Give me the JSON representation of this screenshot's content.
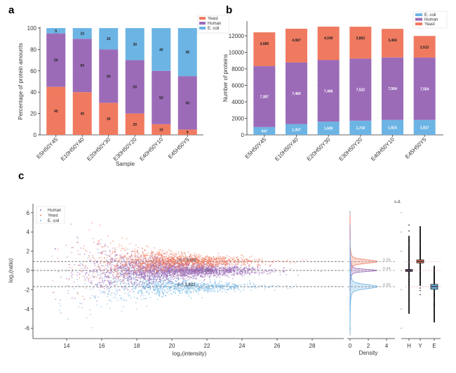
{
  "colors": {
    "yeast": "#f07a60",
    "human": "#9b6bb8",
    "ecoli": "#6cb4e4",
    "axis": "#333333"
  },
  "panels": {
    "a": {
      "letter": "a"
    },
    "b": {
      "letter": "b"
    },
    "c": {
      "letter": "c"
    }
  },
  "chart_data": [
    {
      "id": "a",
      "type": "bar",
      "stacked": true,
      "title": "",
      "xlabel": "Sample",
      "ylabel": "Percentage of protein amounts",
      "ylim": [
        0,
        100
      ],
      "yticks": [
        "0",
        "20",
        "40",
        "60",
        "80",
        "100"
      ],
      "categories": [
        "E5H50Y45",
        "E10H50Y40",
        "E20H50Y30",
        "E30H50Y20",
        "E40H50Y10",
        "E45H50Y5"
      ],
      "series": [
        {
          "name": "Yeast",
          "color_key": "yeast",
          "values": [
            45,
            40,
            30,
            20,
            10,
            5
          ],
          "labels": [
            "45",
            "40",
            "30",
            "20",
            "10",
            "5"
          ]
        },
        {
          "name": "Human",
          "color_key": "human",
          "values": [
            50,
            50,
            50,
            50,
            50,
            50
          ],
          "labels": [
            "50",
            "50",
            "50",
            "50",
            "50",
            "50"
          ]
        },
        {
          "name": "E. coli",
          "color_key": "ecoli",
          "values": [
            5,
            10,
            20,
            30,
            40,
            45
          ],
          "labels": [
            "5",
            "10",
            "20",
            "30",
            "40",
            "45"
          ]
        }
      ],
      "legend": {
        "position": "top-right",
        "entries": [
          "Yeast",
          "Human",
          "E. coli"
        ]
      }
    },
    {
      "id": "b",
      "type": "bar",
      "stacked": true,
      "title": "",
      "xlabel": "",
      "ylabel": "Number of proteins",
      "ylim": [
        0,
        13500
      ],
      "yticks": [
        "0",
        "2000",
        "4000",
        "6000",
        "8000",
        "10000",
        "12000"
      ],
      "grid": true,
      "categories": [
        "E5H50Y45",
        "E10H50Y40",
        "E20H50Y30",
        "E30H50Y20",
        "E40H50Y10",
        "E45H50Y5"
      ],
      "series": [
        {
          "name": "E. coli",
          "color_key": "ecoli",
          "values": [
            947,
            1307,
            1600,
            1719,
            1815,
            1817
          ],
          "labels": [
            "947",
            "1,307",
            "1,600",
            "1,719",
            "1,815",
            "1,817"
          ]
        },
        {
          "name": "Human",
          "color_key": "human",
          "values": [
            7387,
            7466,
            7466,
            7522,
            7564,
            7554
          ],
          "labels": [
            "7,387",
            "7,466",
            "7,466",
            "7,522",
            "7,564",
            "7,554"
          ]
        },
        {
          "name": "Yeast",
          "color_key": "yeast",
          "values": [
            4089,
            4087,
            4049,
            3863,
            3466,
            2612
          ],
          "labels": [
            "4,089",
            "4,087",
            "4,049",
            "3,863",
            "3,466",
            "2,612"
          ]
        }
      ],
      "legend": {
        "position": "top-right",
        "entries": [
          "E. coli",
          "Human",
          "Yeast"
        ]
      }
    },
    {
      "id": "c-scatter",
      "type": "scatter",
      "title": "",
      "xlabel": "log₂(intensity)",
      "ylabel": "log₂(ratio)",
      "xlim": [
        12.2,
        29.5
      ],
      "ylim": [
        -7,
        7
      ],
      "xticks": [
        "14",
        "16",
        "18",
        "20",
        "22",
        "24",
        "26",
        "28"
      ],
      "yticks": [
        "-6",
        "-4",
        "-2",
        "0",
        "2",
        "4",
        "6"
      ],
      "series": [
        {
          "name": "Human",
          "color_key": "human",
          "center": 0.0,
          "n_label": "n = 7,366"
        },
        {
          "name": "Yeast",
          "color_key": "yeast",
          "center": 0.93,
          "n_label": "n = 3,660"
        },
        {
          "name": "E. coli",
          "color_key": "ecoli",
          "center": -1.68,
          "n_label": "n = 1,822"
        }
      ],
      "reference_lines": [
        0.93,
        0.0,
        -1.68
      ],
      "legend": {
        "position": "top-left",
        "entries": [
          "Human",
          "Yeast",
          "E. coli"
        ]
      }
    },
    {
      "id": "c-density",
      "type": "area",
      "xlabel": "Density",
      "xlim": [
        0,
        5
      ],
      "xticks": [
        "0",
        "2",
        "4"
      ],
      "series": [
        {
          "name": "Yeast",
          "color_key": "yeast",
          "peak": 0.93,
          "sd_label": "0.56"
        },
        {
          "name": "Human",
          "color_key": "human",
          "peak": 0.0,
          "sd_label": "0.44"
        },
        {
          "name": "E. coli",
          "color_key": "ecoli",
          "peak": -1.68,
          "sd_label": "0.56"
        }
      ]
    },
    {
      "id": "c-box",
      "type": "box",
      "title": "s.d.",
      "categories": [
        "H",
        "Y",
        "E"
      ],
      "series": [
        {
          "name": "H",
          "color_key": "human",
          "median": 0.0,
          "q1": -0.1,
          "q3": 0.1,
          "whisker_low": -4.5,
          "whisker_high": 3.6
        },
        {
          "name": "Y",
          "color_key": "yeast",
          "median": 0.93,
          "q1": 0.78,
          "q3": 1.1,
          "whisker_low": -1.6,
          "whisker_high": 4.6
        },
        {
          "name": "E",
          "color_key": "ecoli",
          "median": -1.68,
          "q1": -1.95,
          "q3": -1.45,
          "whisker_low": -5.4,
          "whisker_high": 0.4
        }
      ]
    }
  ]
}
